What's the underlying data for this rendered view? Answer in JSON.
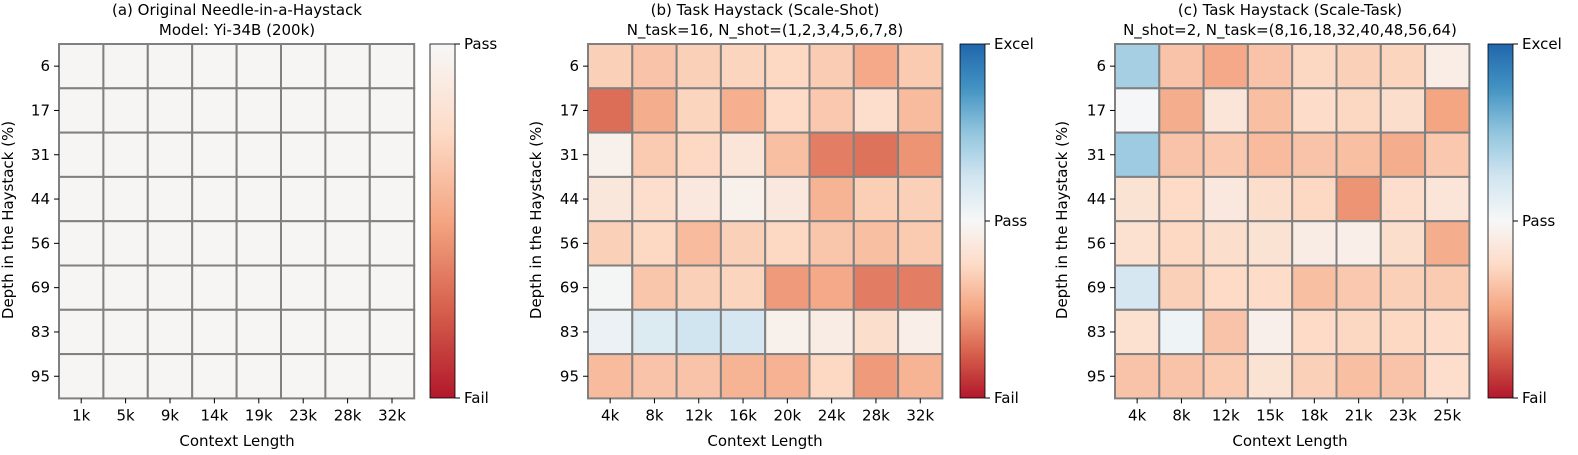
{
  "chart_data": [
    {
      "type": "heatmap",
      "title": "(a) Original Needle-in-a-Haystack",
      "subtitle": "Model: Yi-34B (200k)",
      "xlabel": "Context Length",
      "ylabel": "Depth in the Haystack (%)",
      "x": [
        "1k",
        "5k",
        "9k",
        "14k",
        "19k",
        "23k",
        "28k",
        "32k"
      ],
      "y": [
        "6",
        "17",
        "31",
        "44",
        "56",
        "69",
        "83",
        "95"
      ],
      "colorbar": {
        "ticks": [
          "Pass",
          "Fail"
        ],
        "range": [
          0,
          1
        ],
        "scale": "fail-to-pass"
      },
      "values": [
        [
          0.98,
          0.98,
          0.98,
          0.98,
          0.98,
          0.98,
          0.98,
          0.98
        ],
        [
          0.98,
          0.98,
          0.98,
          0.98,
          0.98,
          0.98,
          0.98,
          0.98
        ],
        [
          0.98,
          0.98,
          0.98,
          0.98,
          0.98,
          0.98,
          0.98,
          0.98
        ],
        [
          0.98,
          0.98,
          0.98,
          0.98,
          0.98,
          0.98,
          0.98,
          0.98
        ],
        [
          0.98,
          0.98,
          0.98,
          0.98,
          0.98,
          0.98,
          0.98,
          0.98
        ],
        [
          0.98,
          0.98,
          0.98,
          0.98,
          0.98,
          0.98,
          0.98,
          0.98
        ],
        [
          0.98,
          0.98,
          0.98,
          0.98,
          0.98,
          0.98,
          0.98,
          0.98
        ],
        [
          0.98,
          0.98,
          0.98,
          0.98,
          0.98,
          0.98,
          0.98,
          0.98
        ]
      ]
    },
    {
      "type": "heatmap",
      "title": "(b) Task Haystack (Scale-Shot)",
      "subtitle": "N_task=16, N_shot=(1,2,3,4,5,6,7,8)",
      "xlabel": "Context Length",
      "ylabel": "Depth in the Haystack (%)",
      "x": [
        "4k",
        "8k",
        "12k",
        "16k",
        "20k",
        "24k",
        "28k",
        "32k"
      ],
      "y": [
        "6",
        "17",
        "31",
        "44",
        "56",
        "69",
        "83",
        "95"
      ],
      "colorbar": {
        "ticks": [
          "Excel",
          "Pass",
          "Fail"
        ],
        "range": [
          -1,
          1
        ],
        "scale": "fail-pass-excel"
      },
      "values": [
        [
          -0.3,
          -0.36,
          -0.3,
          -0.28,
          -0.26,
          -0.32,
          -0.48,
          -0.33
        ],
        [
          -0.7,
          -0.46,
          -0.28,
          -0.45,
          -0.25,
          -0.34,
          -0.23,
          -0.4
        ],
        [
          -0.06,
          -0.33,
          -0.26,
          -0.16,
          -0.38,
          -0.64,
          -0.68,
          -0.56
        ],
        [
          -0.14,
          -0.23,
          -0.13,
          -0.06,
          -0.13,
          -0.43,
          -0.31,
          -0.3
        ],
        [
          -0.3,
          -0.26,
          -0.4,
          -0.3,
          -0.26,
          -0.35,
          -0.38,
          -0.33
        ],
        [
          0.02,
          -0.35,
          -0.3,
          -0.28,
          -0.54,
          -0.48,
          -0.65,
          -0.64
        ],
        [
          0.08,
          0.18,
          0.25,
          0.22,
          -0.06,
          -0.1,
          -0.22,
          -0.08
        ],
        [
          -0.4,
          -0.36,
          -0.36,
          -0.43,
          -0.44,
          -0.26,
          -0.54,
          -0.43
        ]
      ]
    },
    {
      "type": "heatmap",
      "title": "(c) Task Haystack (Scale-Task)",
      "subtitle": "N_shot=2, N_task=(8,16,18,32,40,48,56,64)",
      "xlabel": "Context Length",
      "ylabel": "Depth in the Haystack (%)",
      "x": [
        "4k",
        "8k",
        "12k",
        "15k",
        "18k",
        "21k",
        "23k",
        "25k"
      ],
      "y": [
        "6",
        "17",
        "31",
        "44",
        "56",
        "69",
        "83",
        "95"
      ],
      "colorbar": {
        "ticks": [
          "Excel",
          "Pass",
          "Fail"
        ],
        "range": [
          -1,
          1
        ],
        "scale": "fail-pass-excel"
      },
      "values": [
        [
          0.42,
          -0.36,
          -0.48,
          -0.36,
          -0.27,
          -0.3,
          -0.28,
          -0.09
        ],
        [
          0.01,
          -0.46,
          -0.16,
          -0.38,
          -0.24,
          -0.27,
          -0.22,
          -0.5
        ],
        [
          0.45,
          -0.36,
          -0.34,
          -0.4,
          -0.36,
          -0.38,
          -0.46,
          -0.34
        ],
        [
          -0.18,
          -0.25,
          -0.13,
          -0.22,
          -0.26,
          -0.56,
          -0.23,
          -0.16
        ],
        [
          -0.2,
          -0.26,
          -0.22,
          -0.18,
          -0.1,
          -0.08,
          -0.22,
          -0.46
        ],
        [
          0.22,
          -0.3,
          -0.25,
          -0.24,
          -0.38,
          -0.34,
          -0.3,
          -0.33
        ],
        [
          -0.2,
          0.06,
          -0.36,
          -0.07,
          -0.25,
          -0.27,
          -0.26,
          -0.24
        ],
        [
          -0.36,
          -0.36,
          -0.33,
          -0.18,
          -0.3,
          -0.38,
          -0.36,
          -0.23
        ]
      ]
    }
  ]
}
